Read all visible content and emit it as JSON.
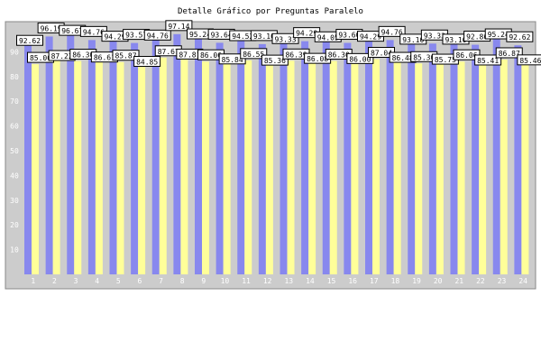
{
  "chart_data": {
    "type": "bar",
    "title": "Detalle Gráfico por Preguntas Paralelo",
    "xlabel": "",
    "ylabel": "",
    "ylim": [
      0,
      100
    ],
    "yticks": [
      10,
      20,
      30,
      40,
      50,
      60,
      70,
      80,
      90
    ],
    "grid": false,
    "legend": "none",
    "categories": [
      "1",
      "2",
      "3",
      "4",
      "5",
      "6",
      "7",
      "8",
      "9",
      "10",
      "11",
      "12",
      "13",
      "14",
      "15",
      "16",
      "17",
      "18",
      "19",
      "20",
      "21",
      "22",
      "23",
      "24"
    ],
    "series": [
      {
        "color": "#8888ee",
        "values": [
          92.62,
          96.19,
          96.67,
          94.76,
          94.29,
          93.57,
          94.76,
          97.14,
          95.24,
          93.64,
          94.52,
          93.1,
          93.33,
          94.29,
          94.05,
          93.6,
          94.29,
          94.76,
          93.1,
          93.33,
          93.1,
          92.86,
          95.24,
          92.62
        ]
      },
      {
        "color": "#ffff99",
        "values": [
          85.0,
          87.22,
          86.3,
          86.61,
          85.87,
          84.85,
          87.67,
          87.81,
          86.06,
          85.84,
          86.55,
          85.36,
          86.39,
          86.08,
          86.3,
          86.0,
          87.04,
          86.48,
          85.3,
          85.75,
          86.06,
          85.41,
          86.87,
          85.46
        ]
      }
    ],
    "colors": {
      "panel": "#cccccc",
      "frame": "#888888",
      "tick_text": "#ffffff",
      "label_box": "#ffffff"
    }
  }
}
